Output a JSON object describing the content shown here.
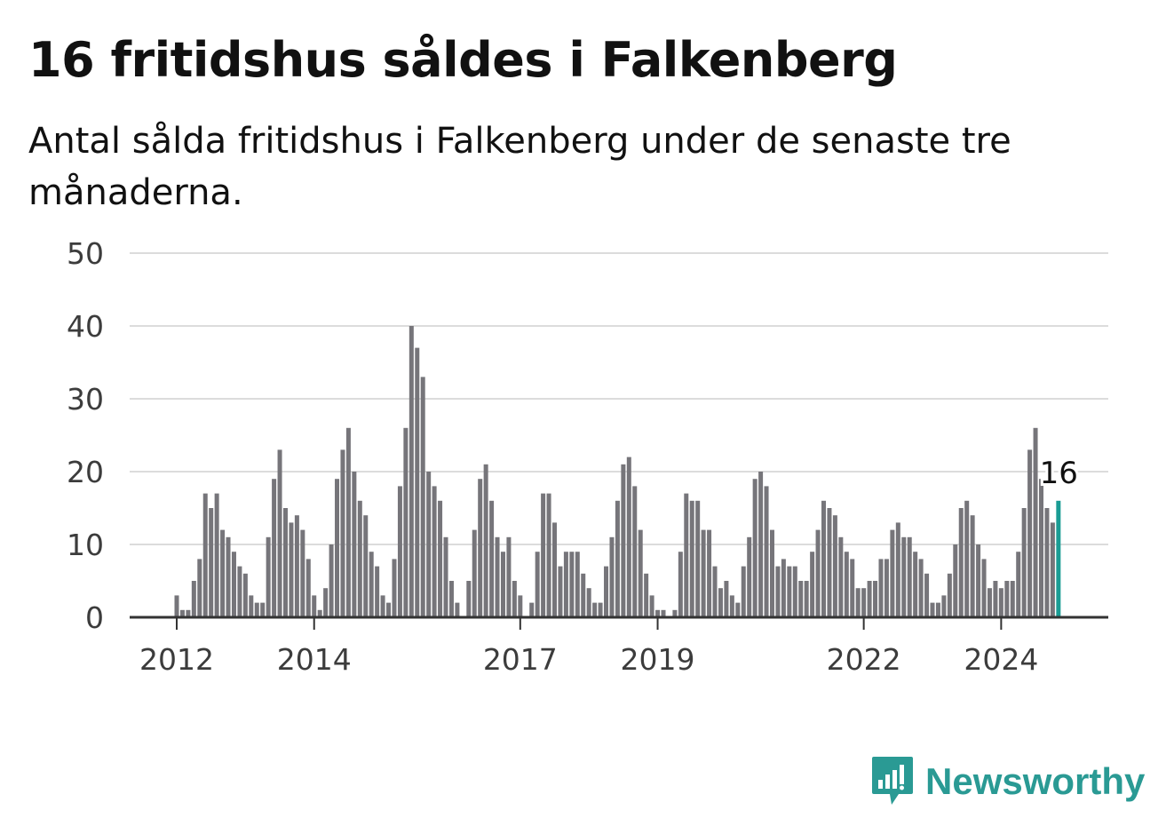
{
  "title": "16 fritidshus såldes i Falkenberg",
  "subtitle": "Antal sålda fritidshus i Falkenberg under de senaste tre månaderna.",
  "brand": "Newsworthy",
  "colors": {
    "bar": "#76757a",
    "highlight": "#1a9c94",
    "grid": "#dcdcdc",
    "axis": "#333333",
    "brand": "#2a9a94"
  },
  "chart_data": {
    "type": "bar",
    "title": "16 fritidshus såldes i Falkenberg",
    "subtitle": "Antal sålda fritidshus i Falkenberg under de senaste tre månaderna.",
    "xlabel": "",
    "ylabel": "",
    "ylim": [
      0,
      50
    ],
    "y_ticks": [
      0,
      10,
      20,
      30,
      40,
      50
    ],
    "x_ticks": [
      {
        "label": "2012",
        "start": "2012-01"
      },
      {
        "label": "2014",
        "start": "2014-01"
      },
      {
        "label": "2017",
        "start": "2017-01"
      },
      {
        "label": "2019",
        "start": "2019-01"
      },
      {
        "label": "2022",
        "start": "2022-01"
      },
      {
        "label": "2024",
        "start": "2024-01"
      }
    ],
    "grid": true,
    "first_period": "2012-01",
    "highlight_last": true,
    "last_value_label": "16",
    "values": [
      3,
      1,
      1,
      5,
      8,
      17,
      15,
      17,
      12,
      11,
      9,
      7,
      6,
      3,
      2,
      2,
      11,
      19,
      23,
      15,
      13,
      14,
      12,
      8,
      3,
      1,
      4,
      10,
      19,
      23,
      26,
      20,
      16,
      14,
      9,
      7,
      3,
      2,
      8,
      18,
      26,
      40,
      37,
      33,
      20,
      18,
      16,
      11,
      5,
      2,
      0,
      5,
      12,
      19,
      21,
      16,
      11,
      9,
      11,
      5,
      3,
      0,
      2,
      9,
      17,
      17,
      13,
      7,
      9,
      9,
      9,
      6,
      4,
      2,
      2,
      7,
      11,
      16,
      21,
      22,
      18,
      12,
      6,
      3,
      1,
      1,
      0,
      1,
      9,
      17,
      16,
      16,
      12,
      12,
      7,
      4,
      5,
      3,
      2,
      7,
      11,
      19,
      20,
      18,
      12,
      7,
      8,
      7,
      7,
      5,
      5,
      9,
      12,
      16,
      15,
      14,
      11,
      9,
      8,
      4,
      4,
      5,
      5,
      8,
      8,
      12,
      13,
      11,
      11,
      9,
      8,
      6,
      2,
      2,
      3,
      6,
      10,
      15,
      16,
      14,
      10,
      8,
      4,
      5,
      4,
      5,
      5,
      9,
      15,
      23,
      26,
      19,
      15,
      13,
      16
    ]
  }
}
